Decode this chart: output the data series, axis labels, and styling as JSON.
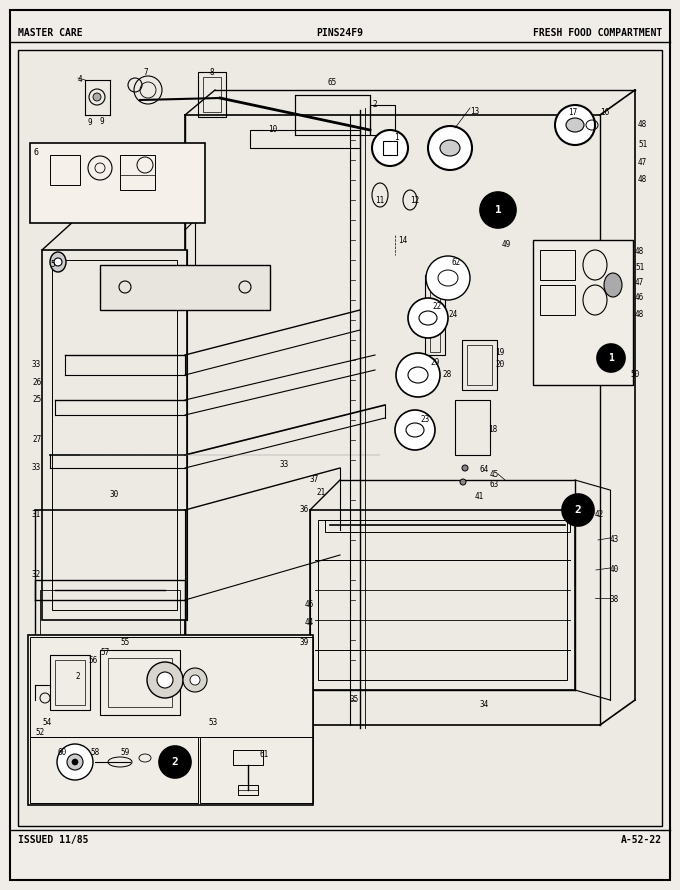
{
  "title_left": "MASTER CARE",
  "title_center": "PINS24F9",
  "title_right": "FRESH FOOD COMPARTMENT",
  "footer_left": "ISSUED 11/85",
  "footer_right": "A-52-22",
  "bg_color": "#f0ede8",
  "border_color": "#000000",
  "text_color": "#000000",
  "page_bg": "#f5f2ed",
  "inner_bg": "#ede9e3"
}
